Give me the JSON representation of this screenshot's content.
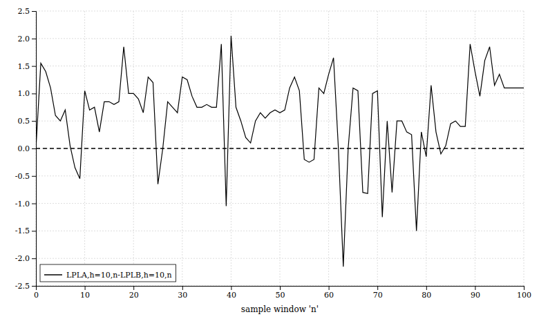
{
  "chart_data": {
    "type": "line",
    "xlabel": "sample window 'n'",
    "x": [
      0,
      1,
      2,
      3,
      4,
      5,
      6,
      7,
      8,
      9,
      10,
      11,
      12,
      13,
      14,
      15,
      16,
      17,
      18,
      19,
      20,
      21,
      22,
      23,
      24,
      25,
      26,
      27,
      28,
      29,
      30,
      31,
      32,
      33,
      34,
      35,
      36,
      37,
      38,
      39,
      40,
      41,
      42,
      43,
      44,
      45,
      46,
      47,
      48,
      49,
      50,
      51,
      52,
      53,
      54,
      55,
      56,
      57,
      58,
      59,
      60,
      61,
      62,
      63,
      64,
      65,
      66,
      67,
      68,
      69,
      70,
      71,
      72,
      73,
      74,
      75,
      76,
      77,
      78,
      79,
      80,
      81,
      82,
      83,
      84,
      85,
      86,
      87,
      88,
      89,
      90,
      91,
      92,
      93,
      94,
      95,
      96,
      97,
      98,
      99,
      100
    ],
    "series": [
      {
        "name": "LPLA,h=10,n-LPLB,h=10,n",
        "color": "#000000",
        "values": [
          0.0,
          1.55,
          1.4,
          1.1,
          0.6,
          0.5,
          0.7,
          0.05,
          -0.35,
          -0.55,
          1.05,
          0.7,
          0.75,
          0.3,
          0.85,
          0.85,
          0.8,
          0.85,
          1.85,
          1.0,
          1.0,
          0.9,
          0.65,
          1.3,
          1.2,
          -0.65,
          0.0,
          0.85,
          0.75,
          0.65,
          1.3,
          1.25,
          0.95,
          0.75,
          0.75,
          0.8,
          0.75,
          0.75,
          1.9,
          -1.05,
          2.05,
          0.75,
          0.5,
          0.2,
          0.1,
          0.5,
          0.65,
          0.55,
          0.65,
          0.7,
          0.65,
          0.7,
          1.1,
          1.3,
          1.05,
          -0.2,
          -0.25,
          -0.2,
          1.1,
          1.0,
          1.35,
          1.65,
          0.0,
          -2.15,
          0.0,
          1.1,
          1.05,
          -0.8,
          -0.82,
          1.0,
          1.05,
          -1.25,
          0.5,
          -0.8,
          0.5,
          0.5,
          0.3,
          0.25,
          -1.5,
          0.3,
          -0.15,
          1.15,
          0.3,
          -0.1,
          0.05,
          0.45,
          0.5,
          0.4,
          0.4,
          1.9,
          1.4,
          0.95,
          1.6,
          1.85,
          1.15,
          1.35,
          1.1,
          1.1,
          1.1,
          1.1,
          1.1
        ]
      }
    ],
    "reference_line": 0,
    "xlim": [
      0,
      100
    ],
    "ylim": [
      -2.5,
      2.5
    ],
    "xticks": [
      0,
      10,
      20,
      30,
      40,
      50,
      60,
      70,
      80,
      90,
      100
    ],
    "yticks": [
      -2.5,
      {
        "value": -2.0,
        "label": "-2.0"
      },
      -1.5,
      {
        "value": -1.0,
        "label": "-1.0"
      },
      -0.5,
      {
        "value": 0.0,
        "label": "0.0"
      },
      0.5,
      {
        "value": 1.0,
        "label": "1.0"
      },
      1.5,
      {
        "value": 2.0,
        "label": "2.0"
      },
      2.5
    ],
    "grid": true,
    "legend": "lower left"
  }
}
